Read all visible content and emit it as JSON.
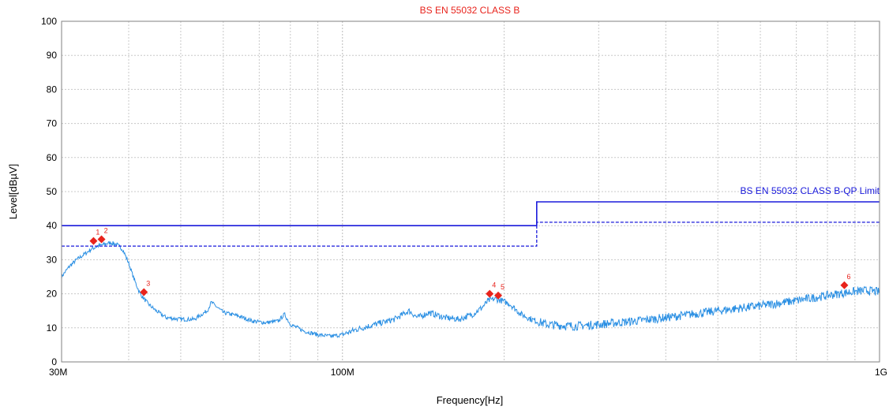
{
  "chart_data": {
    "type": "line",
    "title": "BS EN 55032 CLASS B",
    "xlabel": "Frequency[Hz]",
    "ylabel": "Level[dBµV]",
    "x_scale": "log",
    "xlim": [
      30000000,
      1000000000
    ],
    "ylim": [
      0,
      100
    ],
    "grid": true,
    "x_ticks": [
      {
        "value": 30000000,
        "label": "30M"
      },
      {
        "value": 100000000,
        "label": "100M"
      },
      {
        "value": 1000000000,
        "label": "1G"
      }
    ],
    "y_ticks": [
      0,
      10,
      20,
      30,
      40,
      50,
      60,
      70,
      80,
      90,
      100
    ],
    "limit_label": "BS EN 55032 CLASS B-QP Limit",
    "colors": {
      "measurement": "#2a8fe3",
      "limit": "#1a1adb",
      "marker": "#e8231c",
      "title": "#e8231c",
      "grid": "#c8c8c8"
    },
    "series": [
      {
        "name": "BS EN 55032 CLASS B-QP Limit",
        "style": "solid",
        "points": [
          [
            30000000,
            40
          ],
          [
            230000000,
            40
          ],
          [
            230000000,
            47
          ],
          [
            1000000000,
            47
          ]
        ]
      },
      {
        "style": "dashed",
        "points": [
          [
            30000000,
            34
          ],
          [
            230000000,
            34
          ],
          [
            230000000,
            41
          ],
          [
            1000000000,
            41
          ]
        ]
      },
      {
        "style": "noisy",
        "points": [
          [
            30000000,
            25
          ],
          [
            31000000,
            28
          ],
          [
            32000000,
            30
          ],
          [
            33000000,
            31.5
          ],
          [
            34000000,
            33
          ],
          [
            35000000,
            34
          ],
          [
            36000000,
            34.5
          ],
          [
            37000000,
            35
          ],
          [
            38000000,
            34.5
          ],
          [
            39000000,
            33
          ],
          [
            40000000,
            29
          ],
          [
            41000000,
            24
          ],
          [
            42000000,
            20
          ],
          [
            43500000,
            17
          ],
          [
            45000000,
            15
          ],
          [
            47000000,
            13
          ],
          [
            50000000,
            12.5
          ],
          [
            53000000,
            12.5
          ],
          [
            56000000,
            15
          ],
          [
            57000000,
            17.5
          ],
          [
            58500000,
            16
          ],
          [
            60000000,
            14.5
          ],
          [
            64000000,
            13.5
          ],
          [
            68000000,
            12
          ],
          [
            72000000,
            11.5
          ],
          [
            76000000,
            12
          ],
          [
            78000000,
            14
          ],
          [
            80000000,
            11
          ],
          [
            85000000,
            9
          ],
          [
            90000000,
            8
          ],
          [
            95000000,
            7.5
          ],
          [
            100000000,
            8
          ],
          [
            106000000,
            9.5
          ],
          [
            115000000,
            11
          ],
          [
            125000000,
            12.5
          ],
          [
            133000000,
            15
          ],
          [
            138000000,
            13
          ],
          [
            145000000,
            14.5
          ],
          [
            155000000,
            13
          ],
          [
            165000000,
            12.5
          ],
          [
            175000000,
            14
          ],
          [
            182000000,
            16
          ],
          [
            187000000,
            18
          ],
          [
            192000000,
            18.5
          ],
          [
            198000000,
            18
          ],
          [
            205000000,
            17
          ],
          [
            215000000,
            14
          ],
          [
            225000000,
            12.5
          ],
          [
            240000000,
            11
          ],
          [
            270000000,
            10.5
          ],
          [
            300000000,
            11
          ],
          [
            350000000,
            12
          ],
          [
            400000000,
            13
          ],
          [
            500000000,
            15
          ],
          [
            600000000,
            16.5
          ],
          [
            700000000,
            18
          ],
          [
            800000000,
            19.5
          ],
          [
            880000000,
            20.5
          ],
          [
            950000000,
            21
          ],
          [
            1000000000,
            20.5
          ]
        ]
      }
    ],
    "markers": [
      {
        "label": "1",
        "x": 34400000,
        "y": 35.5
      },
      {
        "label": "2",
        "x": 35600000,
        "y": 36
      },
      {
        "label": "3",
        "x": 42700000,
        "y": 20.5
      },
      {
        "label": "4",
        "x": 188000000,
        "y": 20
      },
      {
        "label": "5",
        "x": 195000000,
        "y": 19.5
      },
      {
        "label": "6",
        "x": 860000000,
        "y": 22.5
      }
    ]
  }
}
